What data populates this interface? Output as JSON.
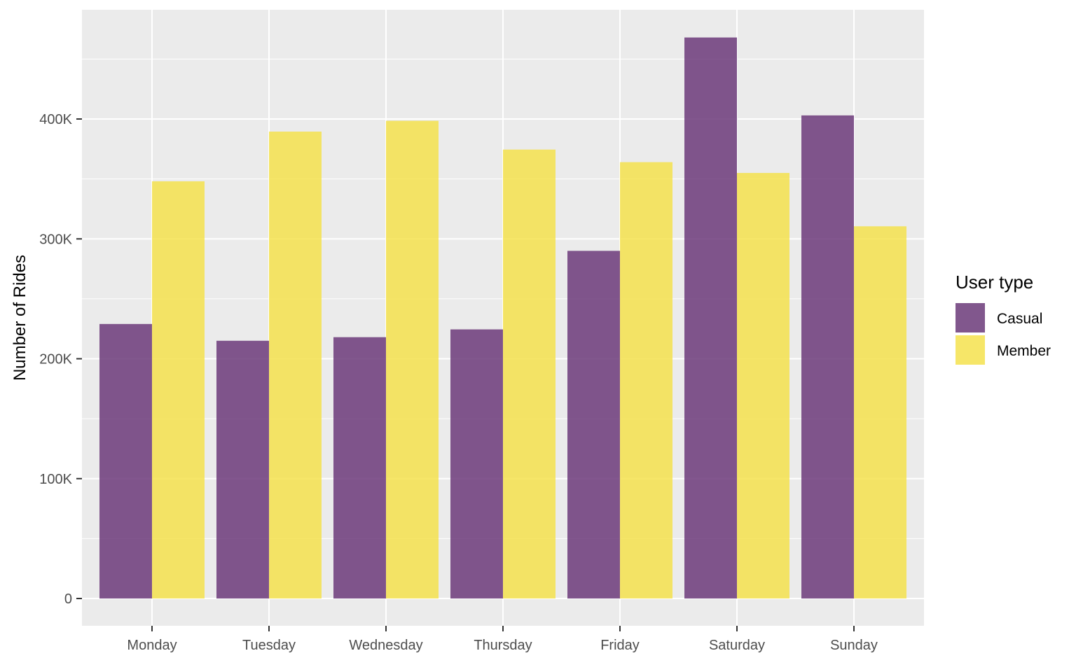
{
  "chart_data": {
    "type": "bar",
    "categories": [
      "Monday",
      "Tuesday",
      "Wednesday",
      "Thursday",
      "Friday",
      "Saturday",
      "Sunday"
    ],
    "series": [
      {
        "name": "Casual",
        "values": [
          229000,
          215000,
          218000,
          224500,
          290000,
          468000,
          403000
        ]
      },
      {
        "name": "Member",
        "values": [
          348000,
          389500,
          398500,
          374500,
          364000,
          355000,
          310500
        ]
      }
    ],
    "xlabel": "",
    "ylabel": "Number of Rides",
    "ylim": [
      0,
      490000
    ],
    "yticks": [
      0,
      100000,
      200000,
      300000,
      400000
    ],
    "ytick_labels": [
      "0",
      "100K",
      "200K",
      "300K",
      "400K"
    ],
    "grid": true,
    "legend": {
      "title": "User type",
      "position": "right"
    },
    "colors": {
      "Casual": "#6c3a7a",
      "Member": "#f5e24e",
      "panel": "#ebebeb",
      "gridline": "#ffffff",
      "axis_text": "#4d4d4d"
    }
  }
}
